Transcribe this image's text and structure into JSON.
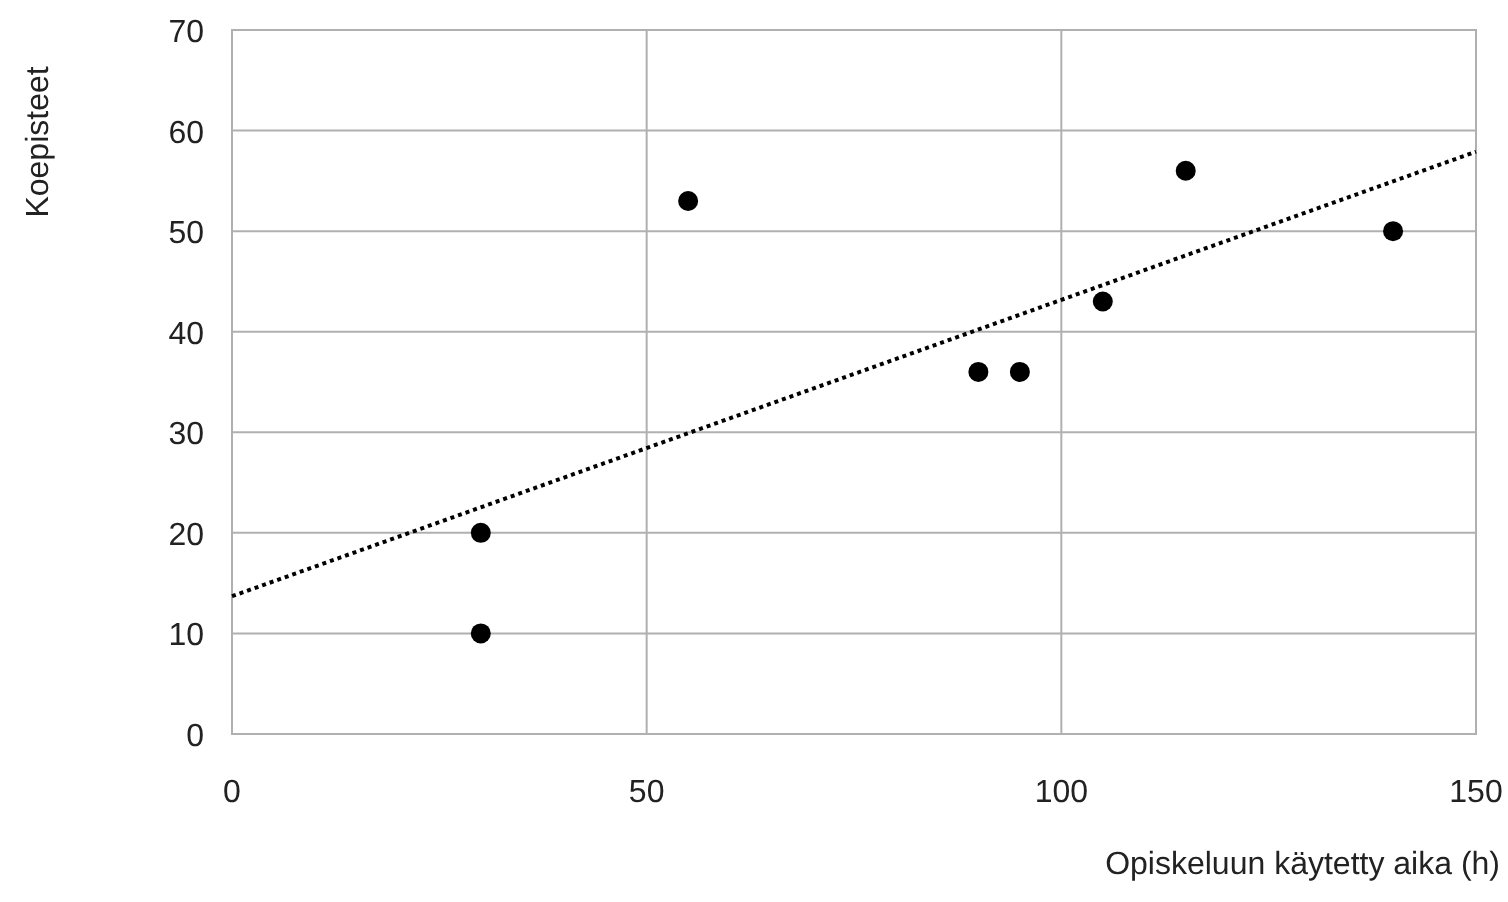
{
  "chart_data": {
    "type": "scatter",
    "xlabel": "Opiskeluun käytetty aika (h)",
    "ylabel": "Koepisteet",
    "xlim": [
      0,
      150
    ],
    "xticks": [
      0,
      50,
      100,
      150
    ],
    "ylim": [
      0,
      70
    ],
    "yticks": [
      0,
      10,
      20,
      30,
      40,
      50,
      60,
      70
    ],
    "grid": true,
    "marker": "circle",
    "series": [
      {
        "type": "scatter",
        "color": "#000000",
        "x": [
          30,
          30,
          55,
          90,
          95,
          105,
          115,
          140
        ],
        "values": [
          20,
          10,
          53,
          36,
          36,
          43,
          56,
          50
        ]
      },
      {
        "type": "line",
        "color": "#000000",
        "line_style": "dotted",
        "marker": "none",
        "x": [
          0,
          150
        ],
        "values": [
          13.7,
          57.9
        ]
      }
    ]
  }
}
